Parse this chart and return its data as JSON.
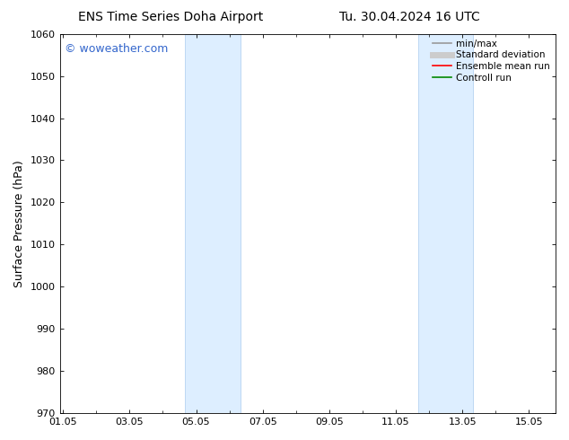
{
  "title_left": "ENS Time Series Doha Airport",
  "title_right": "Tu. 30.04.2024 16 UTC",
  "ylabel": "Surface Pressure (hPa)",
  "ylim": [
    970,
    1060
  ],
  "yticks": [
    970,
    980,
    990,
    1000,
    1010,
    1020,
    1030,
    1040,
    1050,
    1060
  ],
  "xtick_labels": [
    "01.05",
    "03.05",
    "05.05",
    "07.05",
    "09.05",
    "11.05",
    "13.05",
    "15.05"
  ],
  "xtick_positions": [
    0,
    2,
    4,
    6,
    8,
    10,
    12,
    14
  ],
  "xlim": [
    -0.1,
    14.8
  ],
  "shaded_bands": [
    {
      "xmin": 3.67,
      "xmax": 5.33
    },
    {
      "xmin": 10.67,
      "xmax": 12.33
    }
  ],
  "shade_color": "#ddeeff",
  "shade_edge_color": "#aaccee",
  "watermark_text": "© woweather.com",
  "watermark_color": "#3366cc",
  "background_color": "#ffffff",
  "legend_items": [
    {
      "label": "min/max",
      "color": "#999999",
      "lw": 1.2
    },
    {
      "label": "Standard deviation",
      "color": "#cccccc",
      "lw": 5
    },
    {
      "label": "Ensemble mean run",
      "color": "#ff0000",
      "lw": 1.2
    },
    {
      "label": "Controll run",
      "color": "#008800",
      "lw": 1.2
    }
  ],
  "title_fontsize": 10,
  "axis_label_fontsize": 9,
  "tick_fontsize": 8,
  "legend_fontsize": 7.5,
  "watermark_fontsize": 9
}
